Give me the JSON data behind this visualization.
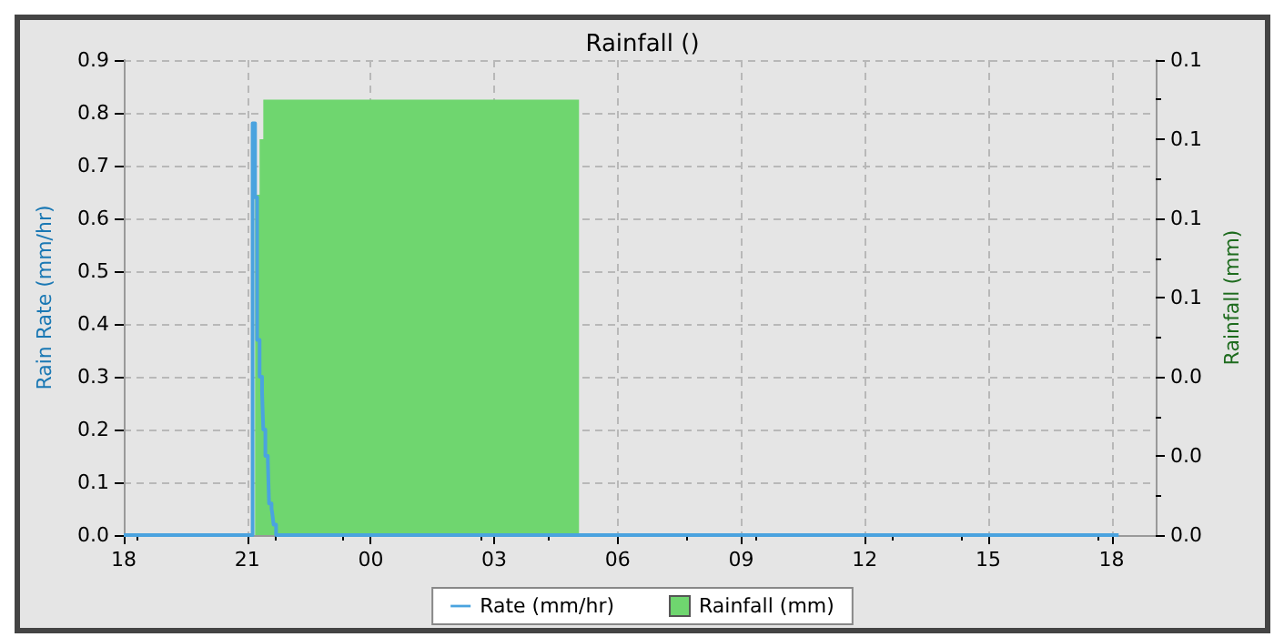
{
  "chart_data": {
    "type": "step",
    "title": "Rainfall ()",
    "ylabel": "Rain Rate (mm/hr)",
    "y2label": "Rainfall (mm)",
    "xlim": [
      18,
      43.07
    ],
    "xticks": [
      {
        "value": 18,
        "label": "18"
      },
      {
        "value": 21,
        "label": "21"
      },
      {
        "value": 24,
        "label": "00"
      },
      {
        "value": 27,
        "label": "03"
      },
      {
        "value": 30,
        "label": "06"
      },
      {
        "value": 33,
        "label": "09"
      },
      {
        "value": 36,
        "label": "12"
      },
      {
        "value": 39,
        "label": "15"
      },
      {
        "value": 42,
        "label": "18"
      }
    ],
    "ylim": [
      0,
      0.9
    ],
    "yticks": [
      {
        "value": 0,
        "label": "0.0"
      },
      {
        "value": 0.1,
        "label": "0.1"
      },
      {
        "value": 0.2,
        "label": "0.2"
      },
      {
        "value": 0.3,
        "label": "0.3"
      },
      {
        "value": 0.4,
        "label": "0.4"
      },
      {
        "value": 0.5,
        "label": "0.5"
      },
      {
        "value": 0.6,
        "label": "0.6"
      },
      {
        "value": 0.7,
        "label": "0.7"
      },
      {
        "value": 0.8,
        "label": "0.8"
      },
      {
        "value": 0.9,
        "label": "0.9"
      }
    ],
    "y2lim": [
      0,
      0.12
    ],
    "y2ticks": [
      {
        "value": 0,
        "label": "0.0"
      },
      {
        "value": 0.02,
        "label": "0.0"
      },
      {
        "value": 0.04,
        "label": "0.0"
      },
      {
        "value": 0.06,
        "label": "0.1"
      },
      {
        "value": 0.08,
        "label": "0.1"
      },
      {
        "value": 0.1,
        "label": "0.1"
      },
      {
        "value": 0.12,
        "label": "0.1"
      }
    ],
    "grid": true,
    "legend": "bottom",
    "series": [
      {
        "name": "Rate (mm/hr)",
        "color": "#4aa3df",
        "x": [
          18,
          21.13,
          21.19,
          21.24,
          21.3,
          21.36,
          21.39,
          21.44,
          21.5,
          21.53,
          21.59,
          21.61,
          21.64,
          21.7,
          42.17
        ],
        "values": [
          0,
          0.78,
          0.64,
          0.37,
          0.3,
          0.27,
          0.2,
          0.15,
          0.14,
          0.06,
          0.05,
          0.04,
          0.02,
          0,
          0
        ]
      },
      {
        "name": "Rainfall (mm)",
        "type": "area",
        "axis": "y2",
        "color": "#6fd66f",
        "x": [
          21.19,
          21.3,
          21.39,
          29.06
        ],
        "values": [
          0.086,
          0.1,
          0.11,
          0.11
        ]
      }
    ]
  }
}
